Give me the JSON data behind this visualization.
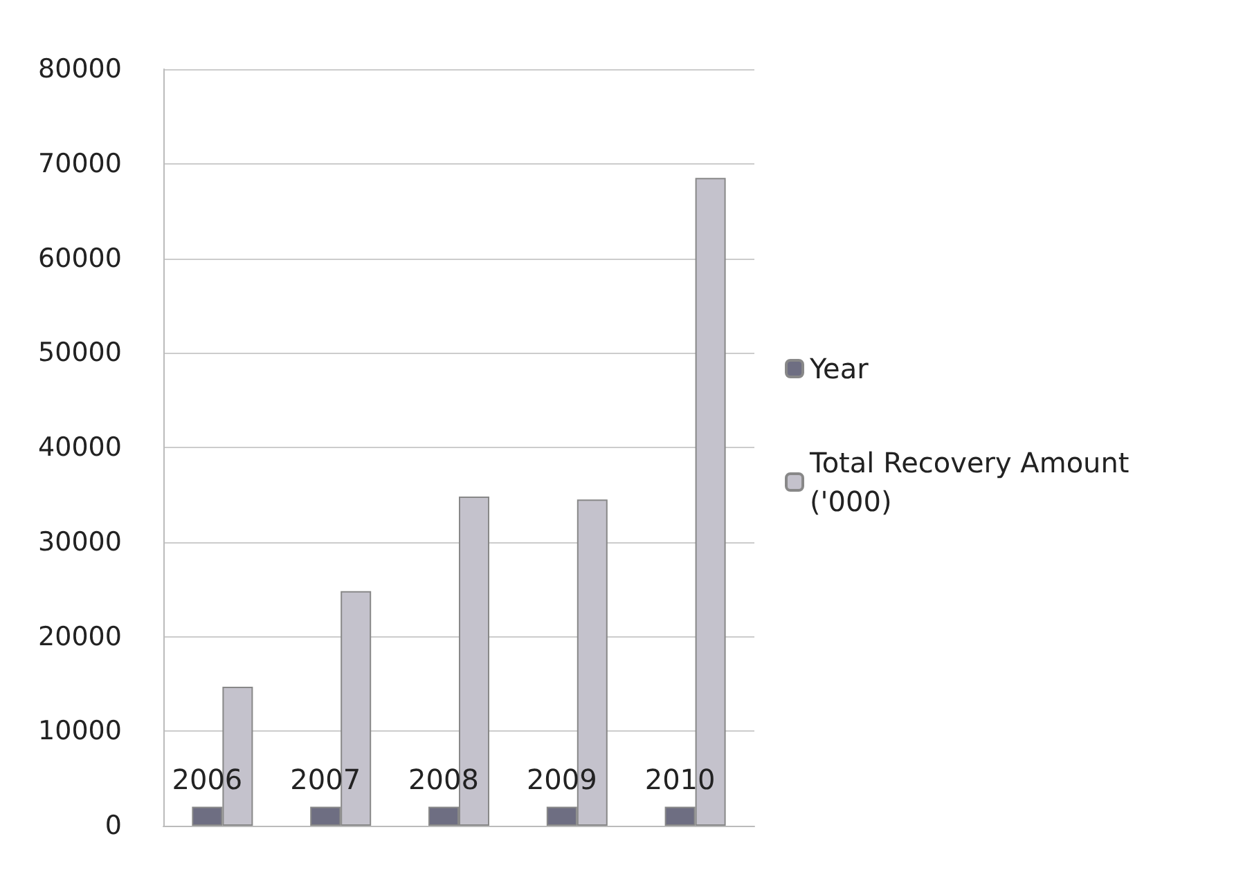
{
  "chart_data": {
    "type": "bar",
    "categories": [
      null,
      null,
      null,
      null,
      null
    ],
    "series": [
      {
        "name": "Year",
        "color": "#6e6e82",
        "values": [
          2006,
          2007,
          2008,
          2009,
          2010
        ],
        "value_labels": [
          "2006",
          "2007",
          "2008",
          "2009",
          "2010"
        ]
      },
      {
        "name": "Total Recovery Amount ('000)",
        "color": "#c4c2cc",
        "values": [
          14700,
          24800,
          34800,
          34500,
          68500
        ]
      }
    ],
    "ylim": [
      0,
      80000
    ],
    "yticks": [
      0,
      10000,
      20000,
      30000,
      40000,
      50000,
      60000,
      70000,
      80000
    ],
    "grid": "y",
    "legend": "right"
  }
}
